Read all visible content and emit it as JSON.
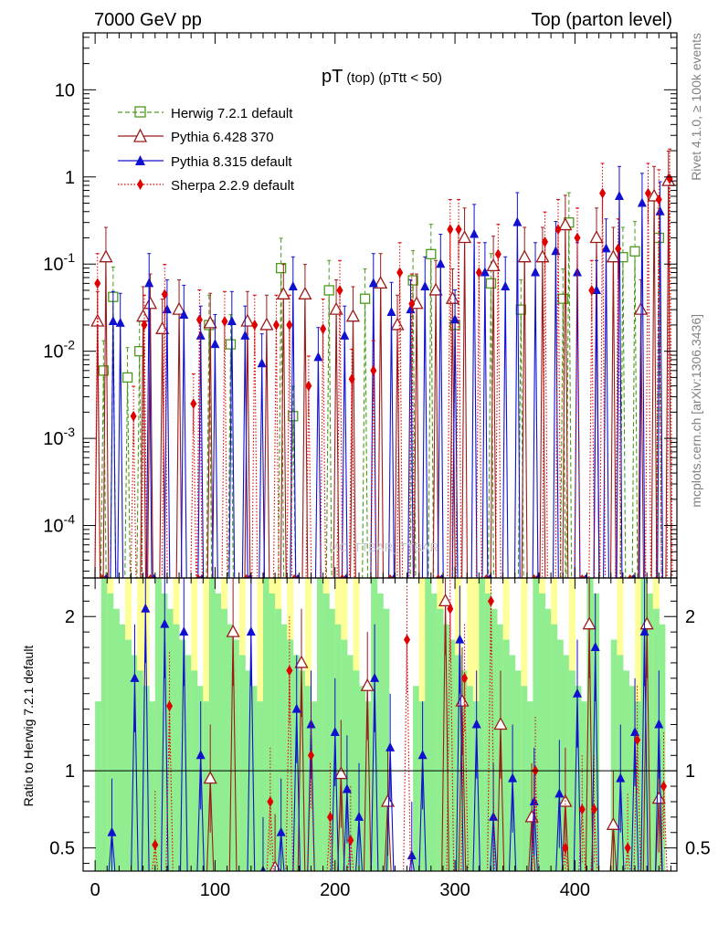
{
  "header": {
    "left": "7000 GeV pp",
    "right": "Top (parton level)"
  },
  "side_labels": {
    "rivet": "Rivet 4.1.0, ≥ 100k events",
    "mcplots": "mcplots.cern.ch [arXiv:1306.3436]"
  },
  "watermark": "MC_TTBAR_TTBAR",
  "colors": {
    "herwig": "#4a9a1a",
    "pythia6": "#9b1b1b",
    "pythia8": "#1010d0",
    "sherpa": "#e00000",
    "band_green": "#90ee90",
    "band_yellow": "#ffff99"
  },
  "chart_data": {
    "type": "line",
    "title_main": "pT",
    "title_sub": "(top) (pTtt < 50)",
    "xlabel": "",
    "ylabel": "",
    "ratio_ylabel": "Ratio to Herwig 7.2.1 default",
    "xlim": [
      -10,
      485
    ],
    "ylim_log": [
      2.5e-05,
      45
    ],
    "ratio_ylim": [
      0.35,
      2.25
    ],
    "x_ticks": [
      "0",
      "100",
      "200",
      "300",
      "400"
    ],
    "y_ticks": [
      "10^-4",
      "10^-3",
      "10^-2",
      "10^-1",
      "1",
      "10"
    ],
    "ratio_ticks": [
      "0.5",
      "1",
      "2"
    ],
    "legend": [
      {
        "name": "Herwig 7.2.1 default",
        "key": "herwig",
        "marker": "square-open",
        "style": "dashed"
      },
      {
        "name": "Pythia 6.428 370",
        "key": "pythia6",
        "marker": "triangle-open",
        "style": "solid"
      },
      {
        "name": "Pythia 8.315 default",
        "key": "pythia8",
        "marker": "triangle-filled",
        "style": "solid"
      },
      {
        "name": "Sherpa 2.2.9 default",
        "key": "sherpa",
        "marker": "diamond-filled",
        "style": "dotted"
      }
    ],
    "series": [
      {
        "name": "Herwig 7.2.1 default",
        "key": "herwig",
        "points": [
          [
            7,
            0.006
          ],
          [
            15,
            0.042
          ],
          [
            27,
            0.005
          ],
          [
            37,
            0.01
          ],
          [
            95,
            0.02
          ],
          [
            113,
            0.012
          ],
          [
            155,
            0.09
          ],
          [
            165,
            0.0018
          ],
          [
            195,
            0.05
          ],
          [
            225,
            0.04
          ],
          [
            265,
            0.065
          ],
          [
            280,
            0.13
          ],
          [
            300,
            0.02
          ],
          [
            330,
            0.06
          ],
          [
            355,
            0.03
          ],
          [
            390,
            0.04
          ],
          [
            395,
            0.3
          ],
          [
            440,
            0.12
          ],
          [
            450,
            0.14
          ],
          [
            470,
            0.2
          ]
        ]
      },
      {
        "name": "Pythia 6.428 370",
        "key": "pythia6",
        "points": [
          [
            2,
            0.022
          ],
          [
            9,
            0.12
          ],
          [
            40,
            0.025
          ],
          [
            46,
            0.035
          ],
          [
            56,
            0.018
          ],
          [
            70,
            0.03
          ],
          [
            96,
            0.021
          ],
          [
            127,
            0.022
          ],
          [
            143,
            0.02
          ],
          [
            157,
            0.045
          ],
          [
            175,
            0.045
          ],
          [
            201,
            0.03
          ],
          [
            215,
            0.025
          ],
          [
            238,
            0.06
          ],
          [
            252,
            0.02
          ],
          [
            268,
            0.035
          ],
          [
            284,
            0.05
          ],
          [
            298,
            0.04
          ],
          [
            308,
            0.2
          ],
          [
            332,
            0.095
          ],
          [
            358,
            0.12
          ],
          [
            373,
            0.12
          ],
          [
            392,
            0.28
          ],
          [
            418,
            0.2
          ],
          [
            432,
            0.12
          ],
          [
            455,
            0.03
          ],
          [
            466,
            0.6
          ],
          [
            478,
            0.9
          ]
        ]
      },
      {
        "name": "Pythia 8.315 default",
        "key": "pythia8",
        "points": [
          [
            15,
            0.022
          ],
          [
            21,
            0.021
          ],
          [
            45,
            0.06
          ],
          [
            60,
            0.03
          ],
          [
            74,
            0.026
          ],
          [
            88,
            0.015
          ],
          [
            100,
            0.012
          ],
          [
            114,
            0.022
          ],
          [
            125,
            0.015
          ],
          [
            139,
            0.0072
          ],
          [
            165,
            0.055
          ],
          [
            186,
            0.0085
          ],
          [
            208,
            0.015
          ],
          [
            232,
            0.06
          ],
          [
            247,
            0.028
          ],
          [
            263,
            0.03
          ],
          [
            275,
            0.055
          ],
          [
            288,
            0.1
          ],
          [
            300,
            0.023
          ],
          [
            316,
            0.22
          ],
          [
            325,
            0.08
          ],
          [
            342,
            0.055
          ],
          [
            352,
            0.3
          ],
          [
            367,
            0.08
          ],
          [
            384,
            0.14
          ],
          [
            402,
            0.08
          ],
          [
            418,
            0.05
          ],
          [
            426,
            0.15
          ],
          [
            437,
            0.6
          ],
          [
            456,
            0.5
          ],
          [
            471,
            0.4
          ]
        ]
      },
      {
        "name": "Sherpa 2.2.9 default",
        "key": "sherpa",
        "points": [
          [
            2,
            0.06
          ],
          [
            32,
            0.0018
          ],
          [
            41,
            0.02
          ],
          [
            58,
            0.045
          ],
          [
            82,
            0.0025
          ],
          [
            87,
            0.023
          ],
          [
            108,
            0.022
          ],
          [
            133,
            0.02
          ],
          [
            151,
            0.02
          ],
          [
            162,
            0.02
          ],
          [
            178,
            0.004
          ],
          [
            190,
            0.018
          ],
          [
            204,
            0.05
          ],
          [
            214,
            0.0048
          ],
          [
            232,
            0.006
          ],
          [
            254,
            0.08
          ],
          [
            264,
            0.035
          ],
          [
            296,
            0.25
          ],
          [
            303,
            0.25
          ],
          [
            320,
            0.08
          ],
          [
            336,
            0.13
          ],
          [
            375,
            0.18
          ],
          [
            386,
            0.25
          ],
          [
            402,
            0.2
          ],
          [
            414,
            0.05
          ],
          [
            423,
            0.65
          ],
          [
            436,
            0.15
          ],
          [
            461,
            0.65
          ],
          [
            470,
            0.55
          ],
          [
            479,
            0.95
          ]
        ]
      }
    ],
    "ratio_series": [
      {
        "key": "pythia6",
        "points": [
          [
            96,
            0.95
          ],
          [
            115,
            1.9
          ],
          [
            150,
            0.37
          ],
          [
            172,
            1.7
          ],
          [
            205,
            0.98
          ],
          [
            227,
            1.55
          ],
          [
            244,
            0.8
          ],
          [
            292,
            2.1
          ],
          [
            306,
            1.45
          ],
          [
            338,
            1.3
          ],
          [
            364,
            0.7
          ],
          [
            392,
            0.8
          ],
          [
            412,
            1.95
          ],
          [
            432,
            0.65
          ],
          [
            460,
            1.95
          ],
          [
            470,
            0.82
          ]
        ]
      },
      {
        "key": "pythia8",
        "points": [
          [
            14,
            0.6
          ],
          [
            33,
            1.6
          ],
          [
            42,
            2.05
          ],
          [
            58,
            1.95
          ],
          [
            74,
            1.9
          ],
          [
            88,
            1.1
          ],
          [
            130,
            1.9
          ],
          [
            140,
            0.35
          ],
          [
            155,
            0.6
          ],
          [
            168,
            1.4
          ],
          [
            180,
            1.3
          ],
          [
            200,
            1.25
          ],
          [
            210,
            0.88
          ],
          [
            220,
            0.7
          ],
          [
            233,
            1.6
          ],
          [
            246,
            1.15
          ],
          [
            264,
            0.45
          ],
          [
            273,
            1.1
          ],
          [
            304,
            1.85
          ],
          [
            318,
            1.3
          ],
          [
            332,
            0.7
          ],
          [
            348,
            0.95
          ],
          [
            366,
            0.8
          ],
          [
            387,
            0.85
          ],
          [
            402,
            1.5
          ],
          [
            417,
            1.8
          ],
          [
            438,
            0.95
          ],
          [
            450,
            1.25
          ],
          [
            458,
            1.9
          ],
          [
            470,
            1.3
          ]
        ]
      },
      {
        "key": "sherpa",
        "points": [
          [
            50,
            0.52
          ],
          [
            62,
            1.42
          ],
          [
            146,
            0.8
          ],
          [
            162,
            1.65
          ],
          [
            180,
            1.1
          ],
          [
            196,
            0.7
          ],
          [
            213,
            0.55
          ],
          [
            260,
            1.85
          ],
          [
            296,
            2.05
          ],
          [
            308,
            1.6
          ],
          [
            330,
            2.1
          ],
          [
            367,
            1.0
          ],
          [
            392,
            0.5
          ],
          [
            406,
            0.75
          ],
          [
            416,
            0.75
          ],
          [
            444,
            0.5
          ],
          [
            452,
            1.2
          ],
          [
            474,
            0.9
          ]
        ]
      }
    ]
  }
}
